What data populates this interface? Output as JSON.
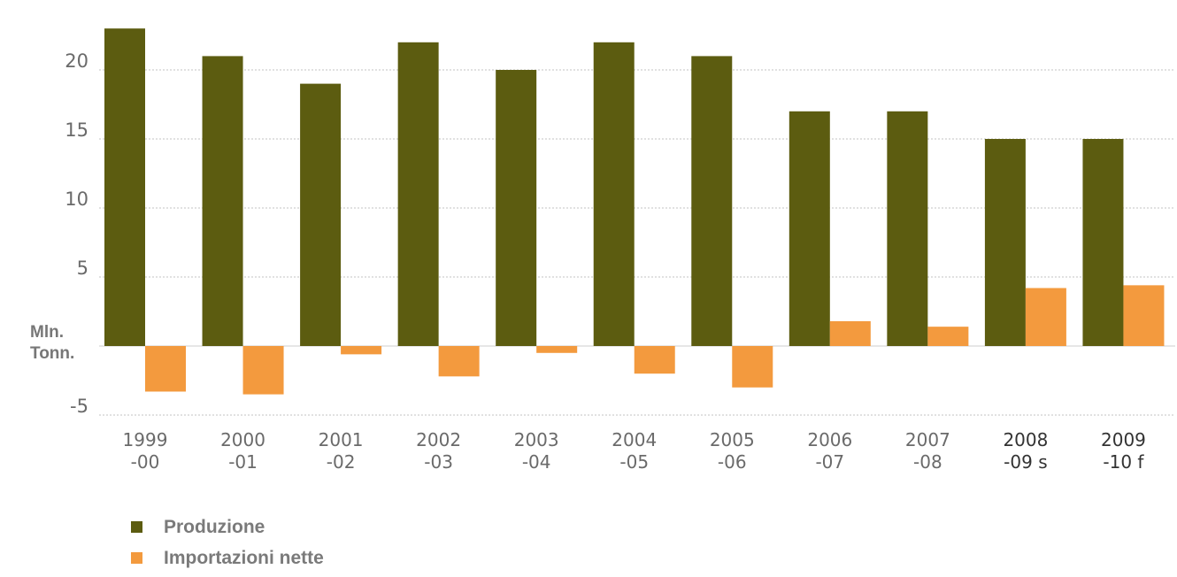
{
  "chart_data": {
    "type": "bar",
    "ylabel": "Mln. Tonn.",
    "ylabel_lines": [
      "Mln.",
      "Tonn."
    ],
    "ylim": [
      -5,
      24
    ],
    "yticks": [
      -5,
      5,
      10,
      15,
      20
    ],
    "grid": true,
    "legend_position": "bottom-left",
    "categories": [
      [
        "1999",
        "-00"
      ],
      [
        "2000",
        "-01"
      ],
      [
        "2001",
        "-02"
      ],
      [
        "2002",
        "-03"
      ],
      [
        "2003",
        "-04"
      ],
      [
        "2004",
        "-05"
      ],
      [
        "2005",
        "-06"
      ],
      [
        "2006",
        "-07"
      ],
      [
        "2007",
        "-08"
      ],
      [
        "2008",
        "-09 s"
      ],
      [
        "2009",
        "-10 f"
      ]
    ],
    "series": [
      {
        "name": "Produzione",
        "color": "#5c5c10",
        "values": [
          23,
          21,
          19,
          22,
          20,
          22,
          21,
          17,
          17,
          15,
          15
        ]
      },
      {
        "name": "Importazioni nette",
        "color": "#f39a3e",
        "values": [
          -3.3,
          -3.5,
          -0.6,
          -2.2,
          -0.5,
          -2.0,
          -3.0,
          1.8,
          1.4,
          4.2,
          4.4
        ]
      }
    ]
  }
}
